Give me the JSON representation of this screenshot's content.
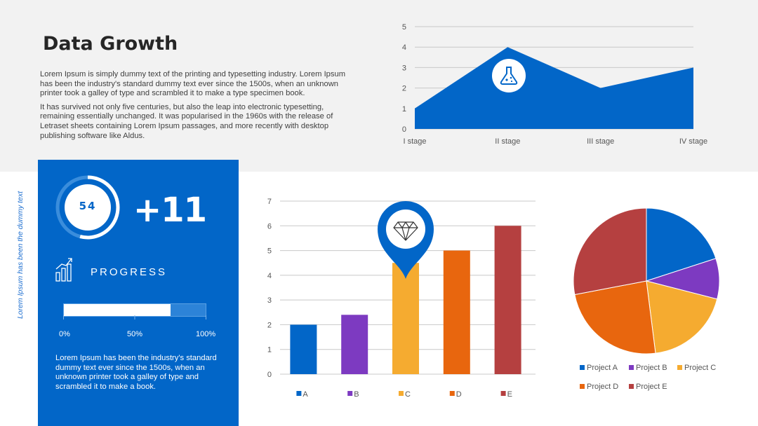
{
  "title": "Data Growth",
  "intro": {
    "p1": "Lorem Ipsum is simply dummy text of the printing and typesetting industry. Lorem Ipsum has been the industry's standard dummy text ever since the 1500s, when an unknown printer took a galley of type and scrambled it to make a type specimen book.",
    "p2": "It has survived not only five centuries, but also the leap into electronic typesetting, remaining essentially unchanged. It was popularised in the 1960s with the release of Letraset sheets containing Lorem Ipsum passages, and more recently with desktop publishing software like Aldus."
  },
  "side_text": "Lorem Ipsum has been the dummy text",
  "panel": {
    "ring_value": "54",
    "ring_fraction": 0.54,
    "big_number": "+11",
    "progress_label": "PROGRESS",
    "progress_fraction": 0.75,
    "ticks": [
      "0%",
      "50%",
      "100%"
    ],
    "text": "Lorem Ipsum has been the industry's standard dummy text ever since the 1500s, when an unknown printer took a galley of type and scrambled it to make a book."
  },
  "colors": {
    "blue": "#0266c8",
    "purple": "#7d3ac1",
    "yellow": "#f5ab30",
    "orange": "#e8660e",
    "red": "#b54040",
    "grid": "#c8c8c8"
  },
  "icons": {
    "area": "flask-icon",
    "bar": "diamond-pin-icon",
    "progress": "growth-chart-icon"
  },
  "chart_data": [
    {
      "type": "area",
      "categories": [
        "I stage",
        "II stage",
        "III stage",
        "IV stage"
      ],
      "values": [
        1,
        4,
        2,
        3
      ],
      "ylim": [
        0,
        5
      ],
      "yticks": [
        0,
        1,
        2,
        3,
        4,
        5
      ],
      "grid": true
    },
    {
      "type": "bar",
      "categories": [
        "A",
        "B",
        "C",
        "D",
        "E"
      ],
      "values": [
        2,
        2.4,
        4.5,
        5,
        6
      ],
      "colors": [
        "#0266c8",
        "#7d3ac1",
        "#f5ab30",
        "#e8660e",
        "#b54040"
      ],
      "ylim": [
        0,
        7
      ],
      "yticks": [
        0,
        1,
        2,
        3,
        4,
        5,
        6,
        7
      ],
      "grid": true,
      "legend": "bottom"
    },
    {
      "type": "pie",
      "labels": [
        "Project A",
        "Project B",
        "Project C",
        "Project D",
        "Project E"
      ],
      "values": [
        20,
        9,
        19,
        24,
        28
      ],
      "colors": [
        "#0266c8",
        "#7d3ac1",
        "#f5ab30",
        "#e8660e",
        "#b54040"
      ],
      "legend": "bottom"
    }
  ]
}
